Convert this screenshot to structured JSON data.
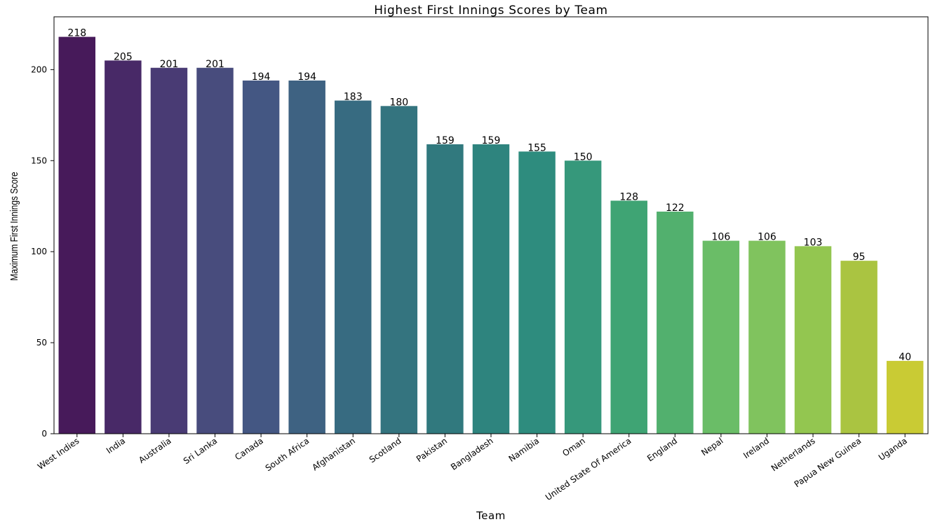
{
  "chart_data": {
    "type": "bar",
    "title": "Highest First Innings Scores by Team",
    "xlabel": "Team",
    "ylabel": "Maximum First Innings Score",
    "categories": [
      "West Indies",
      "India",
      "Australia",
      "Sri Lanka",
      "Canada",
      "South Africa",
      "Afghanistan",
      "Scotland",
      "Pakistan",
      "Bangladesh",
      "Namibia",
      "Oman",
      "United State Of America",
      "England",
      "Nepal",
      "Ireland",
      "Netherlands",
      "Papua New Guinea",
      "Uganda"
    ],
    "values": [
      218,
      205,
      201,
      201,
      194,
      194,
      183,
      180,
      159,
      159,
      155,
      150,
      128,
      122,
      106,
      106,
      103,
      95,
      40
    ],
    "data_labels": [
      "218",
      "205",
      "201",
      "201",
      "194",
      "194",
      "183",
      "180",
      "159",
      "159",
      "155",
      "150",
      "128",
      "122",
      "106",
      "106",
      "103",
      "95",
      "40"
    ],
    "yticks": [
      0,
      50,
      100,
      150,
      200
    ],
    "ytick_labels": [
      "0",
      "50",
      "100",
      "150",
      "200"
    ],
    "ylim": [
      0,
      229
    ],
    "grid": false,
    "legend": "none",
    "colors": [
      "#471a5a",
      "#482967",
      "#493b74",
      "#484c7d",
      "#445783",
      "#3e6282",
      "#376b81",
      "#34747f",
      "#31797e",
      "#2e847e",
      "#2e8c7e",
      "#36987b",
      "#3fa474",
      "#52b06e",
      "#6abd67",
      "#80c35e",
      "#93c650",
      "#aac441",
      "#c9cb34"
    ]
  }
}
